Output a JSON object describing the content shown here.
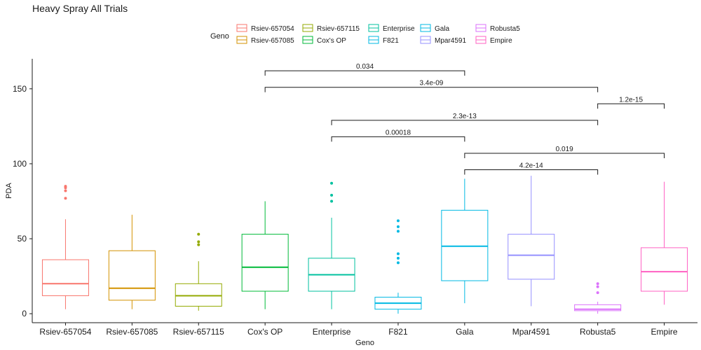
{
  "chart_data": {
    "type": "boxplot",
    "title": "Heavy Spray All Trials",
    "xlabel": "Geno",
    "ylabel": "PDA",
    "ylim": [
      -6,
      170
    ],
    "yticks": [
      0,
      50,
      100,
      150
    ],
    "grid": false,
    "legend": {
      "title": "Geno",
      "placement": "top"
    },
    "categories": [
      "Rsiev-657054",
      "Rsiev-657085",
      "Rsiev-657115",
      "Cox's OP",
      "Enterprise",
      "F821",
      "Gala",
      "Mpar4591",
      "Robusta5",
      "Empire"
    ],
    "colors": [
      "#F8766D",
      "#D39200",
      "#93AA00",
      "#00BA38",
      "#00C19F",
      "#00B9E3",
      "#00B9E3",
      "#9590FF",
      "#DB72FB",
      "#FF61C3"
    ],
    "boxes": [
      {
        "name": "Rsiev-657054",
        "min": 3,
        "q1": 12,
        "median": 20,
        "q3": 36,
        "max": 63,
        "outliers": [
          77,
          82,
          84,
          85
        ]
      },
      {
        "name": "Rsiev-657085",
        "min": 3,
        "q1": 9,
        "median": 17,
        "q3": 42,
        "max": 66,
        "outliers": []
      },
      {
        "name": "Rsiev-657115",
        "min": 2,
        "q1": 5,
        "median": 12,
        "q3": 20,
        "max": 35,
        "outliers": [
          46,
          48,
          53
        ]
      },
      {
        "name": "Cox's OP",
        "min": 3,
        "q1": 15,
        "median": 31,
        "q3": 53,
        "max": 75,
        "outliers": []
      },
      {
        "name": "Enterprise",
        "min": 3,
        "q1": 15,
        "median": 26,
        "q3": 37,
        "max": 64,
        "outliers": [
          75,
          79,
          87
        ]
      },
      {
        "name": "F821",
        "min": 0,
        "q1": 3,
        "median": 7,
        "q3": 11,
        "max": 14,
        "outliers": [
          34,
          37,
          40,
          55,
          58,
          62
        ]
      },
      {
        "name": "Gala",
        "min": 7,
        "q1": 22,
        "median": 45,
        "q3": 69,
        "max": 90,
        "outliers": []
      },
      {
        "name": "Mpar4591",
        "min": 5,
        "q1": 23,
        "median": 39,
        "q3": 53,
        "max": 92,
        "outliers": []
      },
      {
        "name": "Robusta5",
        "min": 0,
        "q1": 2,
        "median": 3,
        "q3": 6,
        "max": 8,
        "outliers": [
          14,
          18,
          20
        ]
      },
      {
        "name": "Empire",
        "min": 6,
        "q1": 15,
        "median": 28,
        "q3": 44,
        "max": 88,
        "outliers": []
      }
    ],
    "comparisons": [
      {
        "from": "Cox's OP",
        "to": "Gala",
        "y": 162,
        "label": "0.034"
      },
      {
        "from": "Cox's OP",
        "to": "Robusta5",
        "y": 151,
        "label": "3.4e-09"
      },
      {
        "from": "Robusta5",
        "to": "Empire",
        "y": 140,
        "label": "1.2e-15"
      },
      {
        "from": "Enterprise",
        "to": "Robusta5",
        "y": 129,
        "label": "2.3e-13"
      },
      {
        "from": "Enterprise",
        "to": "Gala",
        "y": 118,
        "label": "0.00018"
      },
      {
        "from": "Gala",
        "to": "Empire",
        "y": 107,
        "label": "0.019"
      },
      {
        "from": "Gala",
        "to": "Robusta5",
        "y": 96,
        "label": "4.2e-14"
      }
    ]
  }
}
